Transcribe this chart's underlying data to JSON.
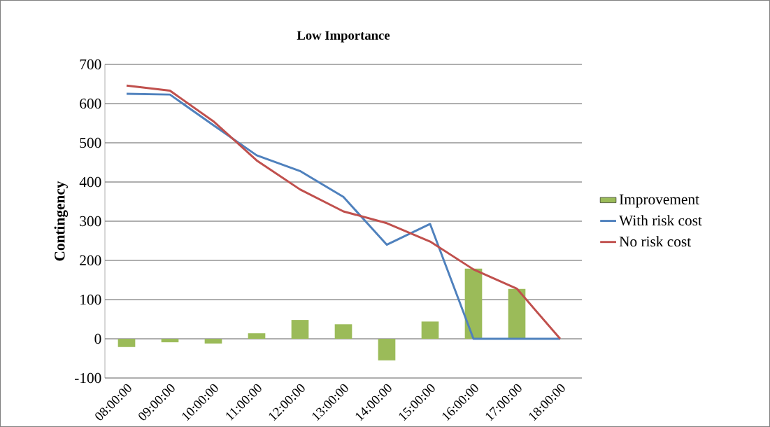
{
  "chart_data": {
    "type": "bar",
    "title": "Low Importance",
    "ylabel": "Contingency",
    "categories": [
      "08:00:00",
      "09:00:00",
      "10:00:00",
      "11:00:00",
      "12:00:00",
      "13:00:00",
      "14:00:00",
      "15:00:00",
      "16:00:00",
      "17:00:00",
      "18:00:00"
    ],
    "series": [
      {
        "name": "Improvement",
        "color": "#9bbb59",
        "values": [
          -21,
          -9,
          -12,
          14,
          48,
          37,
          -55,
          44,
          179,
          127,
          0
        ]
      },
      {
        "name": "With risk cost",
        "type": "line",
        "color": "#4f81bd",
        "values": [
          625,
          623,
          545,
          468,
          428,
          362,
          240,
          293,
          0,
          0,
          0
        ]
      },
      {
        "name": "No risk cost",
        "type": "line",
        "color": "#c0504d",
        "values": [
          646,
          633,
          555,
          455,
          381,
          325,
          295,
          248,
          177,
          128,
          0
        ]
      }
    ],
    "ylim": [
      -100,
      700
    ],
    "yticks": [
      -100,
      0,
      100,
      200,
      300,
      400,
      500,
      600,
      700
    ],
    "grid": "y",
    "legend": "right",
    "marker": "none",
    "line_style": "solid"
  }
}
